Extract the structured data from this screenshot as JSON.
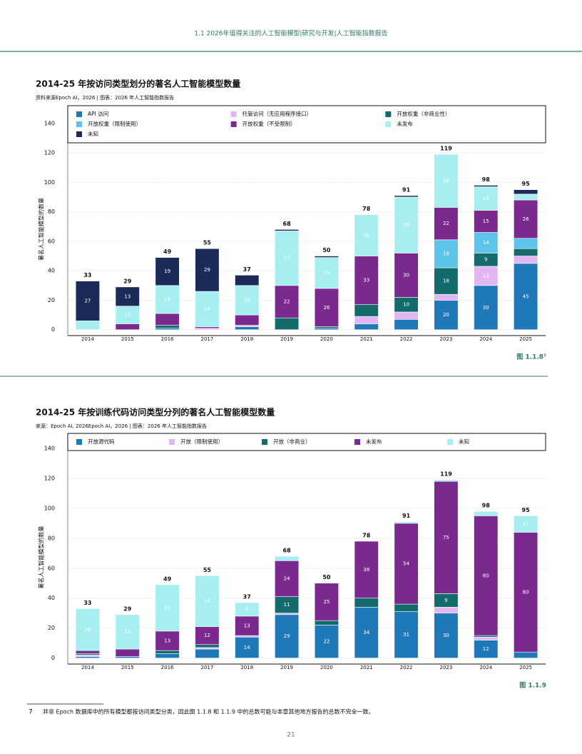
{
  "header": "1.1 2026年值得关注的人工智能模型|研究与开发|人工智能指数报告",
  "chart_data": [
    {
      "type": "stacked_bar",
      "title": "2014-25 年按访问类型划分的著名人工智能模型数量",
      "subtitle": "资料来源Epoch AI，2026 | 图表：2026 年人工智能指数报告",
      "y_label": "著名人工智能模型的数量",
      "figure": "图 1.1.8⁷",
      "categories": [
        "2014",
        "2015",
        "2016",
        "2017",
        "2018",
        "2019",
        "2020",
        "2021",
        "2022",
        "2023",
        "2024",
        "2025"
      ],
      "totals": [
        33,
        29,
        49,
        55,
        37,
        68,
        50,
        78,
        91,
        119,
        98,
        95
      ],
      "ylim": [
        -4,
        152
      ],
      "yticks": [
        0,
        20,
        40,
        60,
        80,
        100,
        120,
        140
      ],
      "grid": true,
      "series": [
        {
          "name": "API 访问",
          "color": "#1f78b8",
          "values": [
            0,
            0,
            1,
            0,
            2,
            0,
            1,
            4,
            7,
            20,
            30,
            45
          ]
        },
        {
          "name": "托管访问（无应用程序接口）",
          "color": "#e2b6f2",
          "values": [
            0,
            0,
            0,
            1,
            1,
            0,
            0,
            5,
            5,
            4,
            13,
            5
          ]
        },
        {
          "name": "开放权重（非商业性）",
          "color": "#146b6b",
          "values": [
            0,
            0,
            2,
            0,
            0,
            8,
            1,
            8,
            10,
            18,
            9,
            5
          ]
        },
        {
          "name": "开放权重（限制使用）",
          "color": "#5cc3ea",
          "values": [
            0,
            0,
            0,
            0,
            0,
            0,
            0,
            0,
            0,
            19,
            14,
            7
          ]
        },
        {
          "name": "开放权重（不受限制）",
          "color": "#7a2a8e",
          "values": [
            0,
            4,
            8,
            1,
            7,
            22,
            26,
            33,
            30,
            22,
            15,
            26
          ]
        },
        {
          "name": "未发布",
          "color": "#a6eef0",
          "values": [
            6,
            12,
            19,
            24,
            20,
            37,
            21,
            28,
            38,
            36,
            16,
            4
          ]
        },
        {
          "name": "未知",
          "color": "#1b2a57",
          "values": [
            27,
            13,
            19,
            29,
            7,
            1,
            1,
            0,
            1,
            0,
            1,
            3
          ]
        }
      ]
    },
    {
      "type": "stacked_bar",
      "title": "2014-25 年按训练代码访问类型分列的著名人工智能模型数量",
      "subtitle": "来源：Epoch AI, 2026Epoch AI，2026 | 图表：2026 年人工智能指数报告",
      "y_label": "著名人工智能模型的数量",
      "figure": "图 1.1.9",
      "categories": [
        "2014",
        "2015",
        "2016",
        "2017",
        "2018",
        "2019",
        "2020",
        "2021",
        "2022",
        "2023",
        "2024",
        "2025"
      ],
      "totals": [
        33,
        29,
        49,
        55,
        37,
        68,
        50,
        78,
        91,
        119,
        98,
        95
      ],
      "ylim": [
        -4,
        150
      ],
      "yticks": [
        0,
        20,
        40,
        60,
        80,
        100,
        120,
        140
      ],
      "grid": true,
      "series": [
        {
          "name": "开放源代码",
          "color": "#1f78b8",
          "values": [
            1,
            1,
            3,
            6,
            14,
            29,
            22,
            34,
            31,
            30,
            12,
            4
          ]
        },
        {
          "name": "开放（限制使用）",
          "color": "#e2b6f2",
          "values": [
            1,
            0,
            0,
            1,
            1,
            1,
            0,
            0,
            0,
            4,
            2,
            0
          ]
        },
        {
          "name": "开放（非商业）",
          "color": "#146b6b",
          "values": [
            1,
            0,
            2,
            2,
            0,
            11,
            3,
            6,
            5,
            9,
            1,
            0
          ]
        },
        {
          "name": "未发布",
          "color": "#7a2a8e",
          "values": [
            2,
            5,
            13,
            12,
            13,
            24,
            25,
            38,
            54,
            75,
            80,
            80
          ]
        },
        {
          "name": "未知",
          "color": "#a6eef0",
          "values": [
            28,
            23,
            31,
            34,
            9,
            3,
            0,
            0,
            1,
            1,
            3,
            11
          ]
        }
      ]
    }
  ],
  "footnote": {
    "number": "7",
    "text": "并非 Epoch 数据库中的所有模型都按访问类型分类，因此图 1.1.8 和 1.1.9 中的总数可能与本章其他地方报告的总数不完全一致。"
  },
  "page_number": "21"
}
